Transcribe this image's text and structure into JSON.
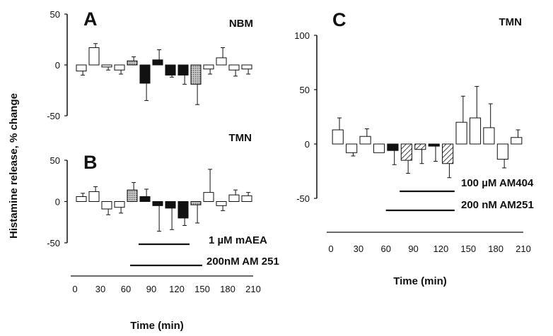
{
  "figure": {
    "ylabel": "Histamine release, % change",
    "colors": {
      "ink": "#111111",
      "stripe": "#555555",
      "open": "#ffffff",
      "black": "#111111",
      "dotted": "#aaaaaa"
    }
  },
  "chart_data": [
    {
      "panel": "A",
      "region": "NBM",
      "type": "bar",
      "ylabel": "Histamine release, % change",
      "xlabel": "",
      "ylim": [
        -50,
        50
      ],
      "yticks": [
        "50",
        "0",
        "-50"
      ],
      "xticks": [],
      "xlim": [
        0,
        210
      ],
      "bars": [
        {
          "x": 7.5,
          "value": -6,
          "error": 4,
          "fill": "open"
        },
        {
          "x": 22.5,
          "value": 17,
          "error": 4,
          "fill": "open"
        },
        {
          "x": 37.5,
          "value": -2,
          "error": 3,
          "fill": "open"
        },
        {
          "x": 52.5,
          "value": -5,
          "error": 4,
          "fill": "open"
        },
        {
          "x": 67.5,
          "value": 4,
          "error": 4,
          "fill": "dotted"
        },
        {
          "x": 82.5,
          "value": -18,
          "error": 17,
          "fill": "black"
        },
        {
          "x": 97.5,
          "value": 5,
          "error": 10,
          "fill": "black"
        },
        {
          "x": 112.5,
          "value": -10,
          "error": 2,
          "fill": "black"
        },
        {
          "x": 127.5,
          "value": -10,
          "error": 9,
          "fill": "black"
        },
        {
          "x": 142.5,
          "value": -19,
          "error": 20,
          "fill": "dotted"
        },
        {
          "x": 157.5,
          "value": -4,
          "error": 5,
          "fill": "open"
        },
        {
          "x": 172.5,
          "value": 7,
          "error": 10,
          "fill": "open"
        },
        {
          "x": 187.5,
          "value": -5,
          "error": 6,
          "fill": "open"
        },
        {
          "x": 202.5,
          "value": -4,
          "error": 5,
          "fill": "open"
        }
      ]
    },
    {
      "panel": "B",
      "region": "TMN",
      "type": "bar",
      "ylabel": "Histamine release, % change",
      "xlabel": "Time (min)",
      "ylim": [
        -50,
        50
      ],
      "yticks": [
        "50",
        "0",
        "-50"
      ],
      "xlim": [
        0,
        210
      ],
      "xticks": [
        "0",
        "30",
        "60",
        "90",
        "120",
        "150",
        "180",
        "210"
      ],
      "bars": [
        {
          "x": 7.5,
          "value": 6,
          "error": 4,
          "fill": "open"
        },
        {
          "x": 22.5,
          "value": 12,
          "error": 6,
          "fill": "open"
        },
        {
          "x": 37.5,
          "value": -9,
          "error": 7,
          "fill": "open"
        },
        {
          "x": 52.5,
          "value": -7,
          "error": 7,
          "fill": "open"
        },
        {
          "x": 67.5,
          "value": 14,
          "error": 9,
          "fill": "dotted"
        },
        {
          "x": 82.5,
          "value": 6,
          "error": 9,
          "fill": "black"
        },
        {
          "x": 97.5,
          "value": -5,
          "error": 31,
          "fill": "black"
        },
        {
          "x": 112.5,
          "value": -8,
          "error": 26,
          "fill": "black"
        },
        {
          "x": 127.5,
          "value": -20,
          "error": 9,
          "fill": "black"
        },
        {
          "x": 142.5,
          "value": -4,
          "error": 22,
          "fill": "dotted"
        },
        {
          "x": 157.5,
          "value": 11,
          "error": 28,
          "fill": "open"
        },
        {
          "x": 172.5,
          "value": -5,
          "error": 6,
          "fill": "open"
        },
        {
          "x": 187.5,
          "value": 8,
          "error": 6,
          "fill": "open"
        },
        {
          "x": 202.5,
          "value": 7,
          "error": 4,
          "fill": "open"
        }
      ],
      "treatments": [
        {
          "label": "1 µM mAEA",
          "x": [
            75,
            135
          ]
        },
        {
          "label": "200nM AM 251",
          "x": [
            65,
            150
          ]
        }
      ]
    },
    {
      "panel": "C",
      "region": "TMN",
      "type": "bar",
      "ylabel": "",
      "xlabel": "Time (min)",
      "ylim": [
        -50,
        100
      ],
      "yticks": [
        "100",
        "50",
        "0",
        "-50"
      ],
      "xlim": [
        0,
        210
      ],
      "xticks": [
        "0",
        "30",
        "60",
        "90",
        "120",
        "150",
        "180",
        "210"
      ],
      "bars": [
        {
          "x": 7.5,
          "value": 13,
          "error": 11,
          "fill": "open"
        },
        {
          "x": 22.5,
          "value": -8,
          "error": 3,
          "fill": "open"
        },
        {
          "x": 37.5,
          "value": 7,
          "error": 7,
          "fill": "open"
        },
        {
          "x": 52.5,
          "value": -8,
          "error": 0,
          "fill": "open"
        },
        {
          "x": 67.5,
          "value": -6,
          "error": 13,
          "fill": "black"
        },
        {
          "x": 82.5,
          "value": -15,
          "error": 12,
          "fill": "hatch"
        },
        {
          "x": 97.5,
          "value": -5,
          "error": 13,
          "fill": "hatch"
        },
        {
          "x": 112.5,
          "value": -2,
          "error": 14,
          "fill": "black"
        },
        {
          "x": 127.5,
          "value": -18,
          "error": 13,
          "fill": "hatch"
        },
        {
          "x": 142.5,
          "value": 20,
          "error": 24,
          "fill": "open"
        },
        {
          "x": 157.5,
          "value": 24,
          "error": 29,
          "fill": "open"
        },
        {
          "x": 172.5,
          "value": 15,
          "error": 22,
          "fill": "open"
        },
        {
          "x": 187.5,
          "value": -14,
          "error": 8,
          "fill": "open"
        },
        {
          "x": 202.5,
          "value": 6,
          "error": 7,
          "fill": "open"
        }
      ],
      "treatments": [
        {
          "label": "100 µM AM404",
          "x": [
            75,
            135
          ]
        },
        {
          "label": "200 nM AM251",
          "x": [
            60,
            135
          ]
        }
      ]
    }
  ]
}
